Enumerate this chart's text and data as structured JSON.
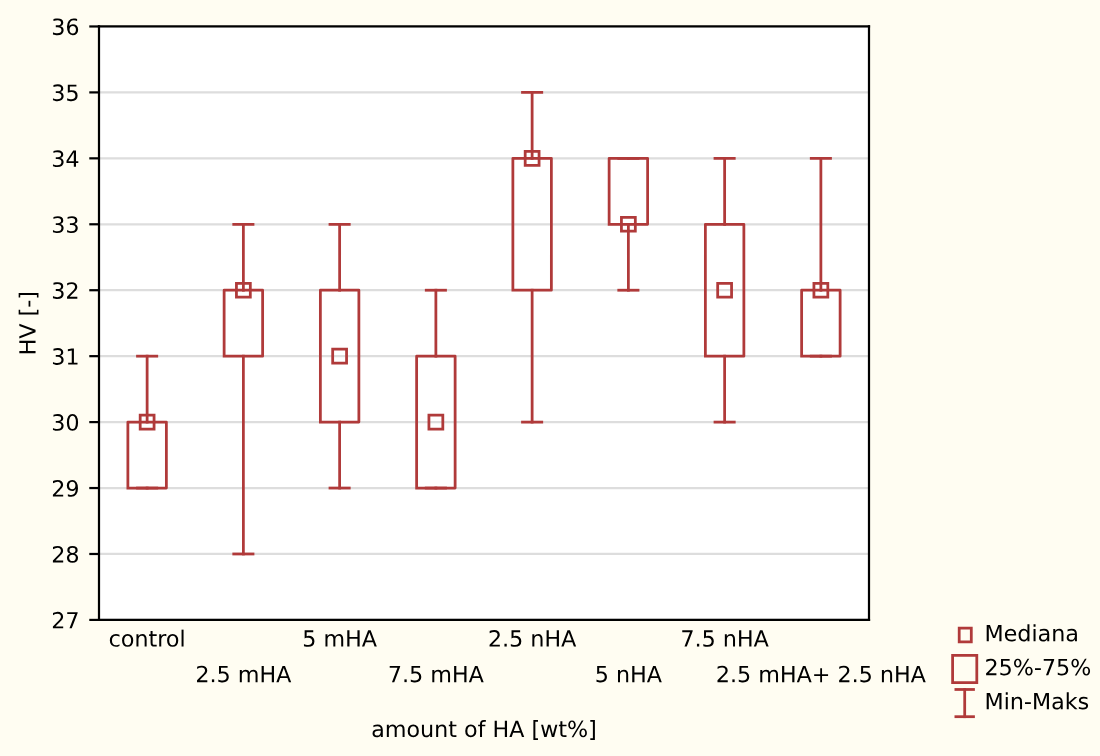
{
  "chart_data": {
    "type": "box",
    "xlabel": "amount of HA [wt%]",
    "ylabel": "HV [-]",
    "categories": [
      "control",
      "2.5 mHA",
      "5 mHA",
      "7.5 mHA",
      "2.5 nHA",
      "5 nHA",
      "7.5 nHA",
      "2.5 mHA+ 2.5 nHA"
    ],
    "series": [
      {
        "color": "#b03a3a",
        "boxes": [
          {
            "low": 29,
            "q1": 29,
            "median": 30,
            "q3": 30,
            "high": 31
          },
          {
            "low": 28,
            "q1": 31,
            "median": 32,
            "q3": 32,
            "high": 33
          },
          {
            "low": 29,
            "q1": 30,
            "median": 31,
            "q3": 32,
            "high": 33
          },
          {
            "low": 29,
            "q1": 29,
            "median": 30,
            "q3": 31,
            "high": 32
          },
          {
            "low": 30,
            "q1": 32,
            "median": 34,
            "q3": 34,
            "high": 35
          },
          {
            "low": 32,
            "q1": 33,
            "median": 33,
            "q3": 34,
            "high": 34
          },
          {
            "low": 30,
            "q1": 31,
            "median": 32,
            "q3": 33,
            "high": 34
          },
          {
            "low": 31,
            "q1": 31,
            "median": 32,
            "q3": 32,
            "high": 34
          }
        ]
      }
    ],
    "annotations": [
      "Mediana",
      "25%-75%",
      "Min-Maks"
    ],
    "ylim": [
      27,
      36
    ],
    "yticks": [
      27,
      28,
      29,
      30,
      31,
      32,
      33,
      34,
      35,
      36
    ],
    "grid": "y"
  }
}
